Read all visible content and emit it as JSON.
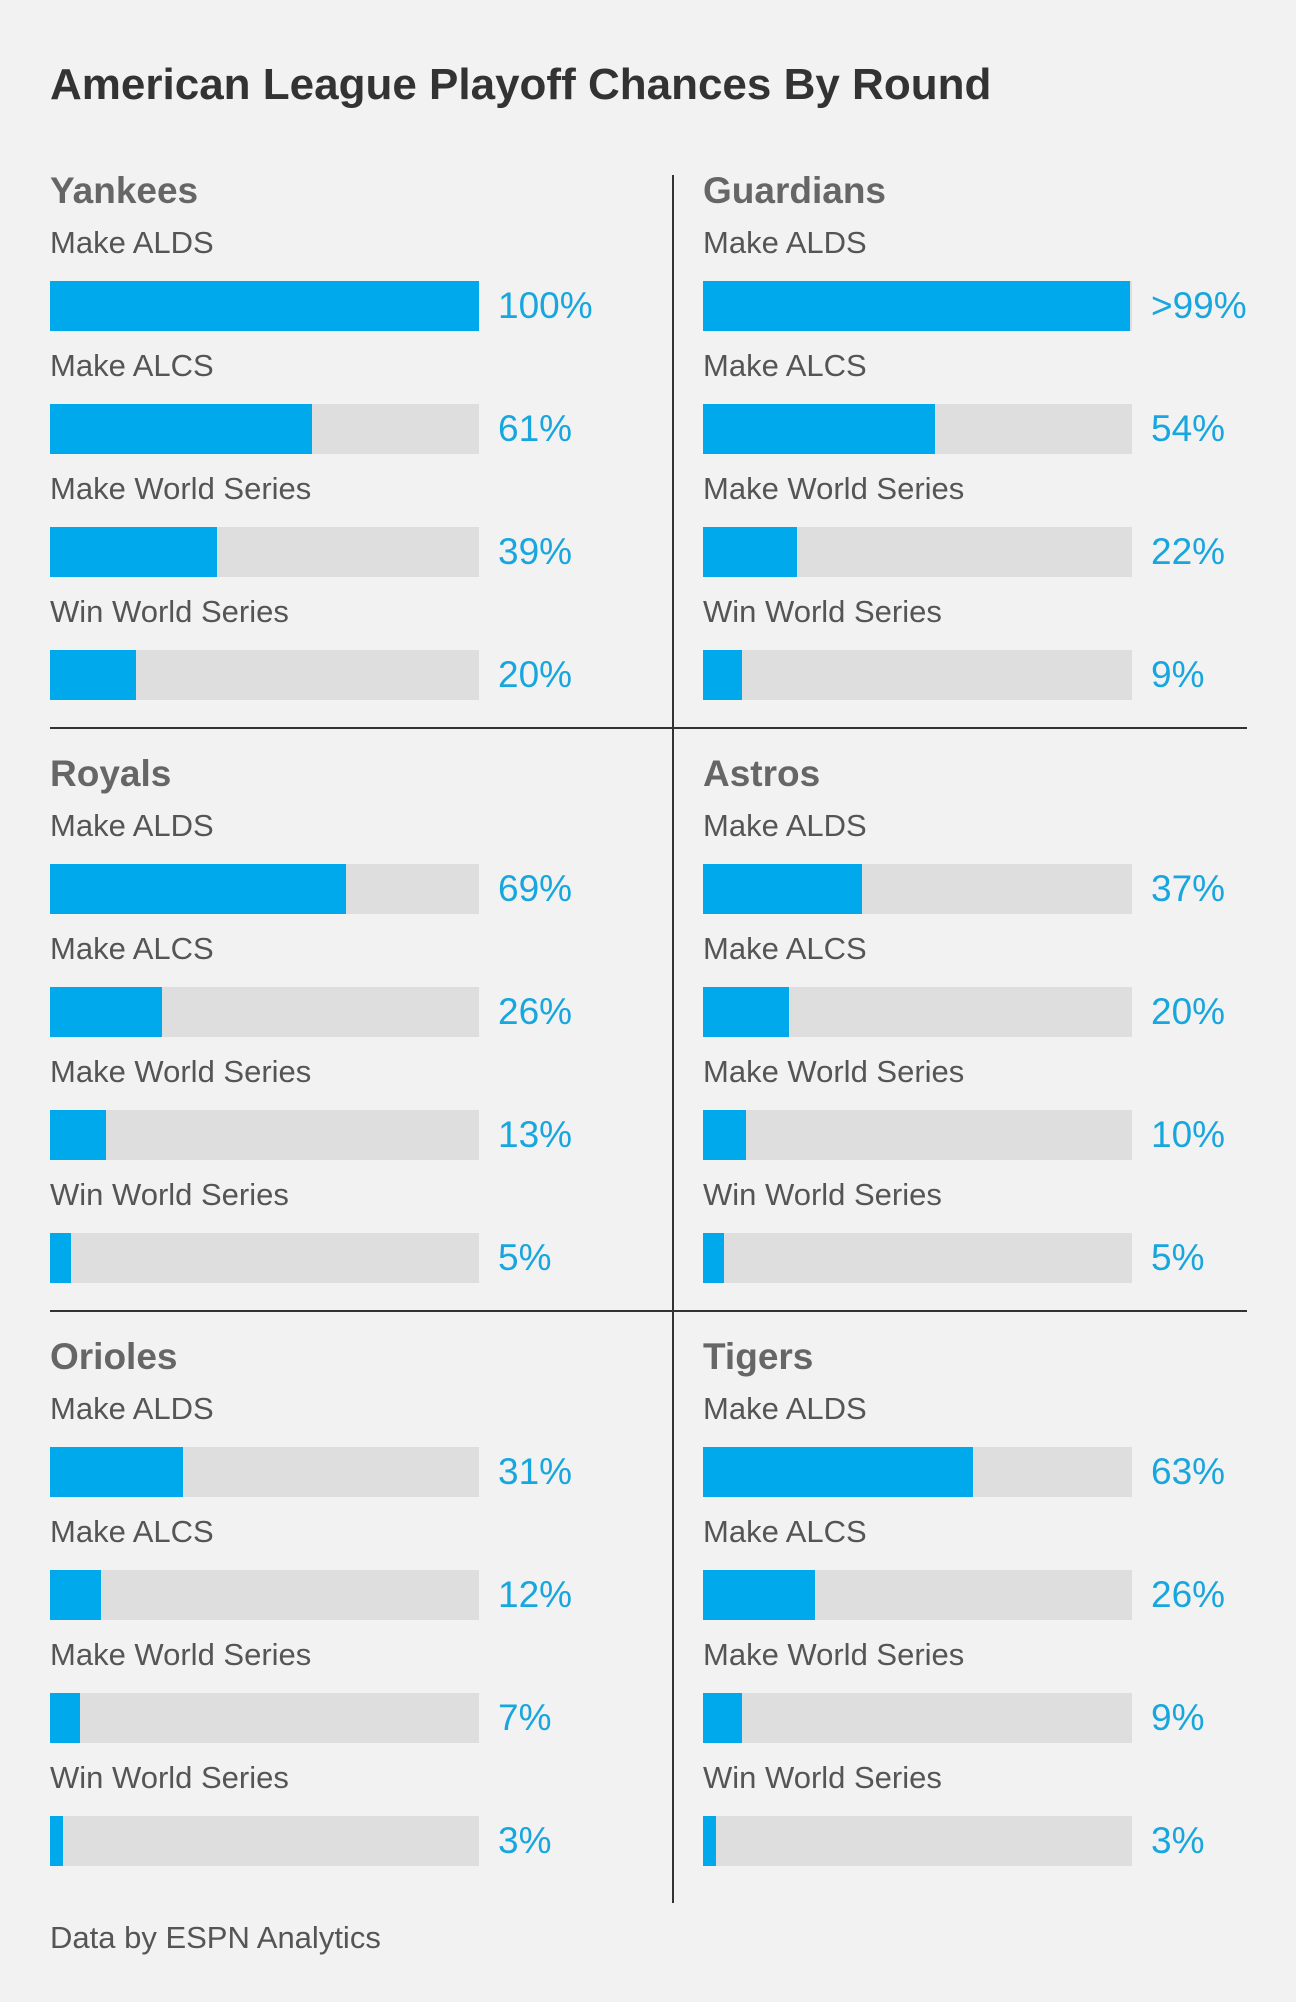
{
  "title": "American League Playoff Chances By Round",
  "footer": "Data by ESPN Analytics",
  "colors": {
    "bar": "#00a9ec",
    "track": "#dedede",
    "value_text": "#18a6df",
    "team_text": "#666666",
    "background": "#f2f2f2"
  },
  "chart_data": {
    "type": "bar",
    "orientation": "horizontal",
    "title": "American League Playoff Chances By Round",
    "unit": "%",
    "xlim": [
      0,
      100
    ],
    "categories": [
      "Make ALDS",
      "Make ALCS",
      "Make World Series",
      "Win World Series"
    ],
    "teams": [
      {
        "name": "Yankees",
        "rounds": [
          {
            "label": "Make ALDS",
            "value": 100,
            "display": "100%"
          },
          {
            "label": "Make ALCS",
            "value": 61,
            "display": "61%"
          },
          {
            "label": "Make World Series",
            "value": 39,
            "display": "39%"
          },
          {
            "label": "Win World Series",
            "value": 20,
            "display": "20%"
          }
        ]
      },
      {
        "name": "Guardians",
        "rounds": [
          {
            "label": "Make ALDS",
            "value": 99.5,
            "display": ">99%"
          },
          {
            "label": "Make ALCS",
            "value": 54,
            "display": "54%"
          },
          {
            "label": "Make World Series",
            "value": 22,
            "display": "22%"
          },
          {
            "label": "Win World Series",
            "value": 9,
            "display": "9%"
          }
        ]
      },
      {
        "name": "Royals",
        "rounds": [
          {
            "label": "Make ALDS",
            "value": 69,
            "display": "69%"
          },
          {
            "label": "Make ALCS",
            "value": 26,
            "display": "26%"
          },
          {
            "label": "Make World Series",
            "value": 13,
            "display": "13%"
          },
          {
            "label": "Win World Series",
            "value": 5,
            "display": "5%"
          }
        ]
      },
      {
        "name": "Astros",
        "rounds": [
          {
            "label": "Make ALDS",
            "value": 37,
            "display": "37%"
          },
          {
            "label": "Make ALCS",
            "value": 20,
            "display": "20%"
          },
          {
            "label": "Make World Series",
            "value": 10,
            "display": "10%"
          },
          {
            "label": "Win World Series",
            "value": 5,
            "display": "5%"
          }
        ]
      },
      {
        "name": "Orioles",
        "rounds": [
          {
            "label": "Make ALDS",
            "value": 31,
            "display": "31%"
          },
          {
            "label": "Make ALCS",
            "value": 12,
            "display": "12%"
          },
          {
            "label": "Make World Series",
            "value": 7,
            "display": "7%"
          },
          {
            "label": "Win World Series",
            "value": 3,
            "display": "3%"
          }
        ]
      },
      {
        "name": "Tigers",
        "rounds": [
          {
            "label": "Make ALDS",
            "value": 63,
            "display": "63%"
          },
          {
            "label": "Make ALCS",
            "value": 26,
            "display": "26%"
          },
          {
            "label": "Make World Series",
            "value": 9,
            "display": "9%"
          },
          {
            "label": "Win World Series",
            "value": 3,
            "display": "3%"
          }
        ]
      }
    ]
  }
}
